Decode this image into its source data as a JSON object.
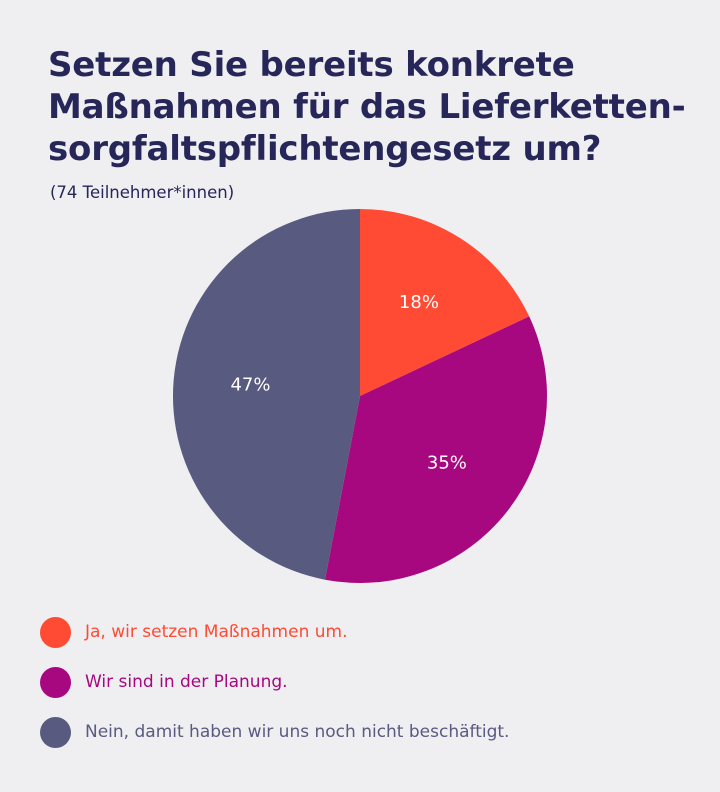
{
  "header": {
    "title": "Setzen Sie bereits konkrete Maßnahmen für das Lieferketten-sorgfaltspflichtengesetz um?",
    "subtitle": "(74 Teilnehmer*innen)"
  },
  "chart_data": {
    "type": "pie",
    "title": "Setzen Sie bereits konkrete Maßnahmen für das Lieferketten-sorgfaltspflichtengesetz um?",
    "subtitle": "(74 Teilnehmer*innen)",
    "categories": [
      "Ja, wir setzen Maßnahmen um.",
      "Wir sind in der Planung.",
      "Nein, damit haben wir uns noch nicht beschäftigt."
    ],
    "values": [
      18,
      35,
      47
    ],
    "labels": [
      "18%",
      "35%",
      "47%"
    ],
    "colors": [
      "#ff4b33",
      "#a8087f",
      "#595a80"
    ],
    "start_angle": "top, clockwise",
    "legend_position": "bottom-left"
  },
  "legend": {
    "items": [
      {
        "label": "Ja, wir setzen Maßnahmen um.",
        "color": "#ff4b33"
      },
      {
        "label": "Wir sind in der Planung.",
        "color": "#a8087f"
      },
      {
        "label": "Nein, damit haben wir uns noch nicht beschäftigt.",
        "color": "#595a80"
      }
    ]
  }
}
